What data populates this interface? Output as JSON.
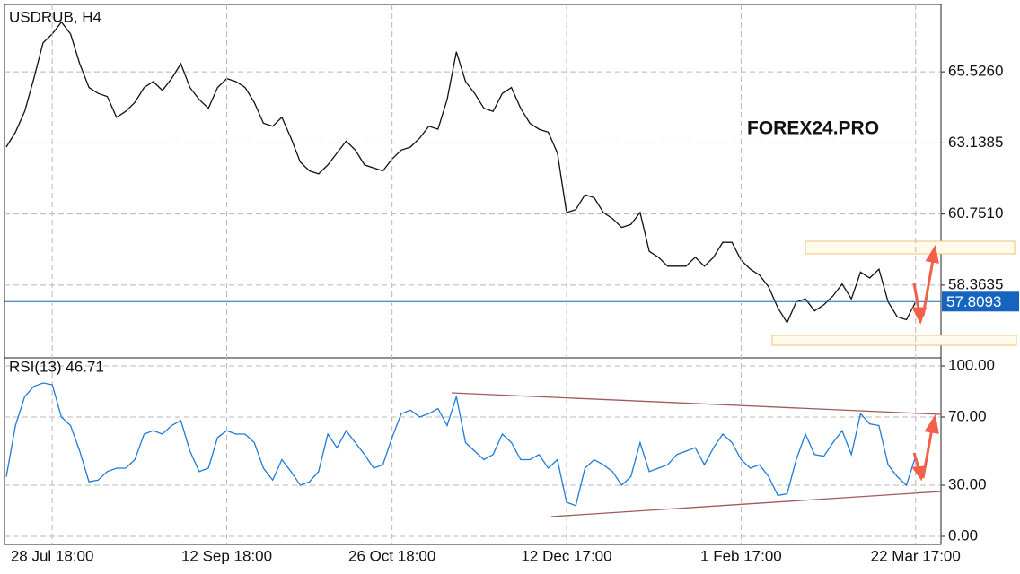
{
  "chart_data": [
    {
      "type": "line",
      "title": "USDRUB, H4",
      "color": "#111111",
      "values": [
        63.0,
        63.5,
        64.2,
        65.3,
        66.5,
        66.8,
        67.2,
        66.8,
        65.8,
        65.0,
        64.8,
        64.7,
        64.0,
        64.2,
        64.5,
        65.0,
        65.2,
        64.9,
        65.3,
        65.8,
        65.0,
        64.6,
        64.3,
        65.0,
        65.3,
        65.2,
        65.0,
        64.5,
        63.8,
        63.7,
        64.0,
        63.3,
        62.5,
        62.2,
        62.1,
        62.4,
        62.8,
        63.2,
        62.9,
        62.4,
        62.3,
        62.2,
        62.6,
        62.9,
        63.0,
        63.3,
        63.7,
        63.6,
        64.6,
        66.2,
        65.2,
        64.8,
        64.3,
        64.2,
        64.8,
        65.0,
        64.3,
        63.8,
        63.6,
        63.5,
        62.8,
        60.8,
        60.9,
        61.4,
        61.3,
        60.8,
        60.6,
        60.3,
        60.4,
        60.8,
        59.5,
        59.3,
        59.0,
        59.0,
        59.0,
        59.3,
        59.0,
        59.3,
        59.8,
        59.8,
        59.2,
        58.9,
        58.7,
        58.3,
        57.6,
        57.1,
        57.8,
        57.9,
        57.5,
        57.7,
        58.0,
        58.4,
        57.9,
        58.8,
        58.6,
        58.9,
        57.8,
        57.3,
        57.2,
        57.8
      ],
      "ylim": [
        55.95,
        67.79
      ],
      "yticks": [
        {
          "value": 65.526,
          "label": "65.5260"
        },
        63.1385,
        {
          "value": 60.751,
          "label": "60.7510"
        },
        58.3635
      ],
      "current_price": 57.8093,
      "current_color": "#1565c0",
      "grid": true,
      "watermark": "FOREX24.PRO"
    },
    {
      "type": "line",
      "title": "RSI(13) 46.71",
      "color": "#1e7bd6",
      "categories": [
        null,
        null,
        null,
        null,
        null,
        "28 Jul 18:00",
        null,
        null,
        null,
        null,
        null,
        null,
        null,
        null,
        null,
        null,
        null,
        null,
        null,
        null,
        null,
        null,
        null,
        null,
        "12 Sep 18:00",
        null,
        null,
        null,
        null,
        null,
        null,
        null,
        null,
        null,
        null,
        null,
        null,
        null,
        null,
        null,
        null,
        null,
        "26 Oct 18:00",
        null,
        null,
        null,
        null,
        null,
        null,
        null,
        null,
        null,
        null,
        null,
        null,
        null,
        null,
        null,
        null,
        null,
        null,
        "12 Dec 17:00",
        null,
        null,
        null,
        null,
        null,
        null,
        null,
        null,
        null,
        null,
        null,
        null,
        null,
        null,
        null,
        null,
        null,
        null,
        "1 Feb 17:00",
        null,
        null,
        null,
        null,
        null,
        null,
        null,
        null,
        null,
        null,
        null,
        null,
        null,
        null,
        null,
        null,
        null,
        null,
        "22 Mar 17:00"
      ],
      "values": [
        35,
        65,
        82,
        88,
        90,
        89,
        70,
        65,
        50,
        32,
        33,
        38,
        40,
        40,
        45,
        60,
        62,
        60,
        65,
        68,
        50,
        38,
        40,
        58,
        62,
        60,
        60,
        55,
        40,
        33,
        45,
        38,
        30,
        32,
        38,
        60,
        52,
        62,
        55,
        48,
        40,
        42,
        58,
        72,
        74,
        70,
        72,
        75,
        65,
        82,
        55,
        50,
        45,
        48,
        60,
        55,
        45,
        45,
        48,
        40,
        45,
        20,
        18,
        40,
        45,
        42,
        38,
        30,
        35,
        55,
        38,
        40,
        42,
        48,
        50,
        52,
        42,
        52,
        60,
        55,
        45,
        40,
        42,
        35,
        24,
        25,
        45,
        60,
        48,
        47,
        55,
        62,
        48,
        72,
        66,
        65,
        42,
        35,
        30,
        47
      ],
      "ylim": [
        0,
        100
      ],
      "yticks": [
        {
          "value": 100,
          "label": "100.00"
        },
        {
          "value": 70,
          "label": "70.00"
        },
        {
          "value": 30,
          "label": "30.00"
        },
        {
          "value": 0,
          "label": "0.00"
        }
      ],
      "grid": true
    }
  ]
}
